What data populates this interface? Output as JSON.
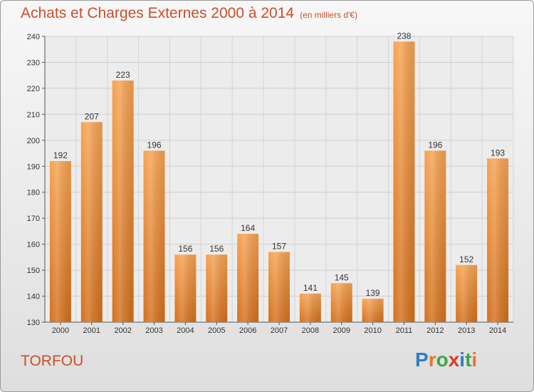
{
  "header": {
    "title": "Achats et Charges Externes 2000 à 2014",
    "subtitle": "(en milliers d'€)"
  },
  "footer": {
    "place": "TORFOU",
    "brand": "Proxiti",
    "brand_colors": [
      "#2f7fc8",
      "#e8762a",
      "#3aa845",
      "#e23a2a",
      "#2f7fc8",
      "#3aa845",
      "#e8762a"
    ]
  },
  "chart_data": {
    "type": "bar",
    "title": "Achats et Charges Externes 2000 à 2014",
    "subtitle": "(en milliers d'€)",
    "categories": [
      "2000",
      "2001",
      "2002",
      "2003",
      "2004",
      "2005",
      "2006",
      "2007",
      "2008",
      "2009",
      "2010",
      "2011",
      "2012",
      "2013",
      "2014"
    ],
    "values": [
      192,
      207,
      223,
      196,
      156,
      156,
      164,
      157,
      141,
      145,
      139,
      238,
      196,
      152,
      193
    ],
    "ylim": [
      130,
      240
    ],
    "yticks": [
      130,
      140,
      150,
      160,
      170,
      180,
      190,
      200,
      210,
      220,
      230,
      240
    ],
    "grid": true,
    "legend": "none",
    "bar_color": "#f0892f"
  }
}
